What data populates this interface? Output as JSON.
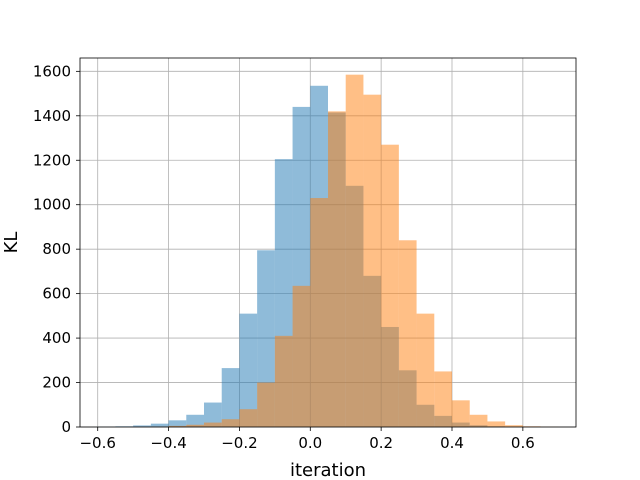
{
  "chart_data": {
    "type": "bar",
    "title": "",
    "xlabel": "iteration",
    "ylabel": "KL",
    "xlim": [
      -0.65,
      0.75
    ],
    "ylim": [
      0,
      1660
    ],
    "grid": true,
    "xticks": [
      -0.6,
      -0.4,
      -0.2,
      0.0,
      0.2,
      0.4,
      0.6
    ],
    "xtick_labels": [
      "−0.6",
      "−0.4",
      "−0.2",
      "0.0",
      "0.2",
      "0.4",
      "0.6"
    ],
    "yticks": [
      0,
      200,
      400,
      600,
      800,
      1000,
      1200,
      1400,
      1600
    ],
    "ytick_labels": [
      "0",
      "200",
      "400",
      "600",
      "800",
      "1000",
      "1200",
      "1400",
      "1600"
    ],
    "series": [
      {
        "color": "#1f77b4",
        "opacity": 0.5,
        "bin_edges": [
          -0.6,
          -0.55,
          -0.5,
          -0.45,
          -0.4,
          -0.35,
          -0.3,
          -0.25,
          -0.2,
          -0.15,
          -0.1,
          -0.05,
          0.0,
          0.05,
          0.1,
          0.15,
          0.2,
          0.25,
          0.3,
          0.35,
          0.4,
          0.45,
          0.5,
          0.55,
          0.6
        ],
        "values": [
          1,
          3,
          7,
          15,
          30,
          55,
          110,
          265,
          510,
          795,
          1205,
          1440,
          1535,
          1415,
          1085,
          680,
          450,
          255,
          100,
          50,
          20,
          8,
          3,
          1
        ]
      },
      {
        "color": "#ff7f0e",
        "opacity": 0.5,
        "bin_edges": [
          -0.5,
          -0.45,
          -0.4,
          -0.35,
          -0.3,
          -0.25,
          -0.2,
          -0.15,
          -0.1,
          -0.05,
          0.0,
          0.05,
          0.1,
          0.15,
          0.2,
          0.25,
          0.3,
          0.35,
          0.4,
          0.45,
          0.5,
          0.55,
          0.6,
          0.65,
          0.7
        ],
        "values": [
          1,
          2,
          5,
          10,
          20,
          35,
          80,
          200,
          410,
          635,
          1030,
          1420,
          1585,
          1495,
          1270,
          840,
          510,
          250,
          120,
          55,
          25,
          8,
          3,
          1
        ]
      }
    ]
  }
}
